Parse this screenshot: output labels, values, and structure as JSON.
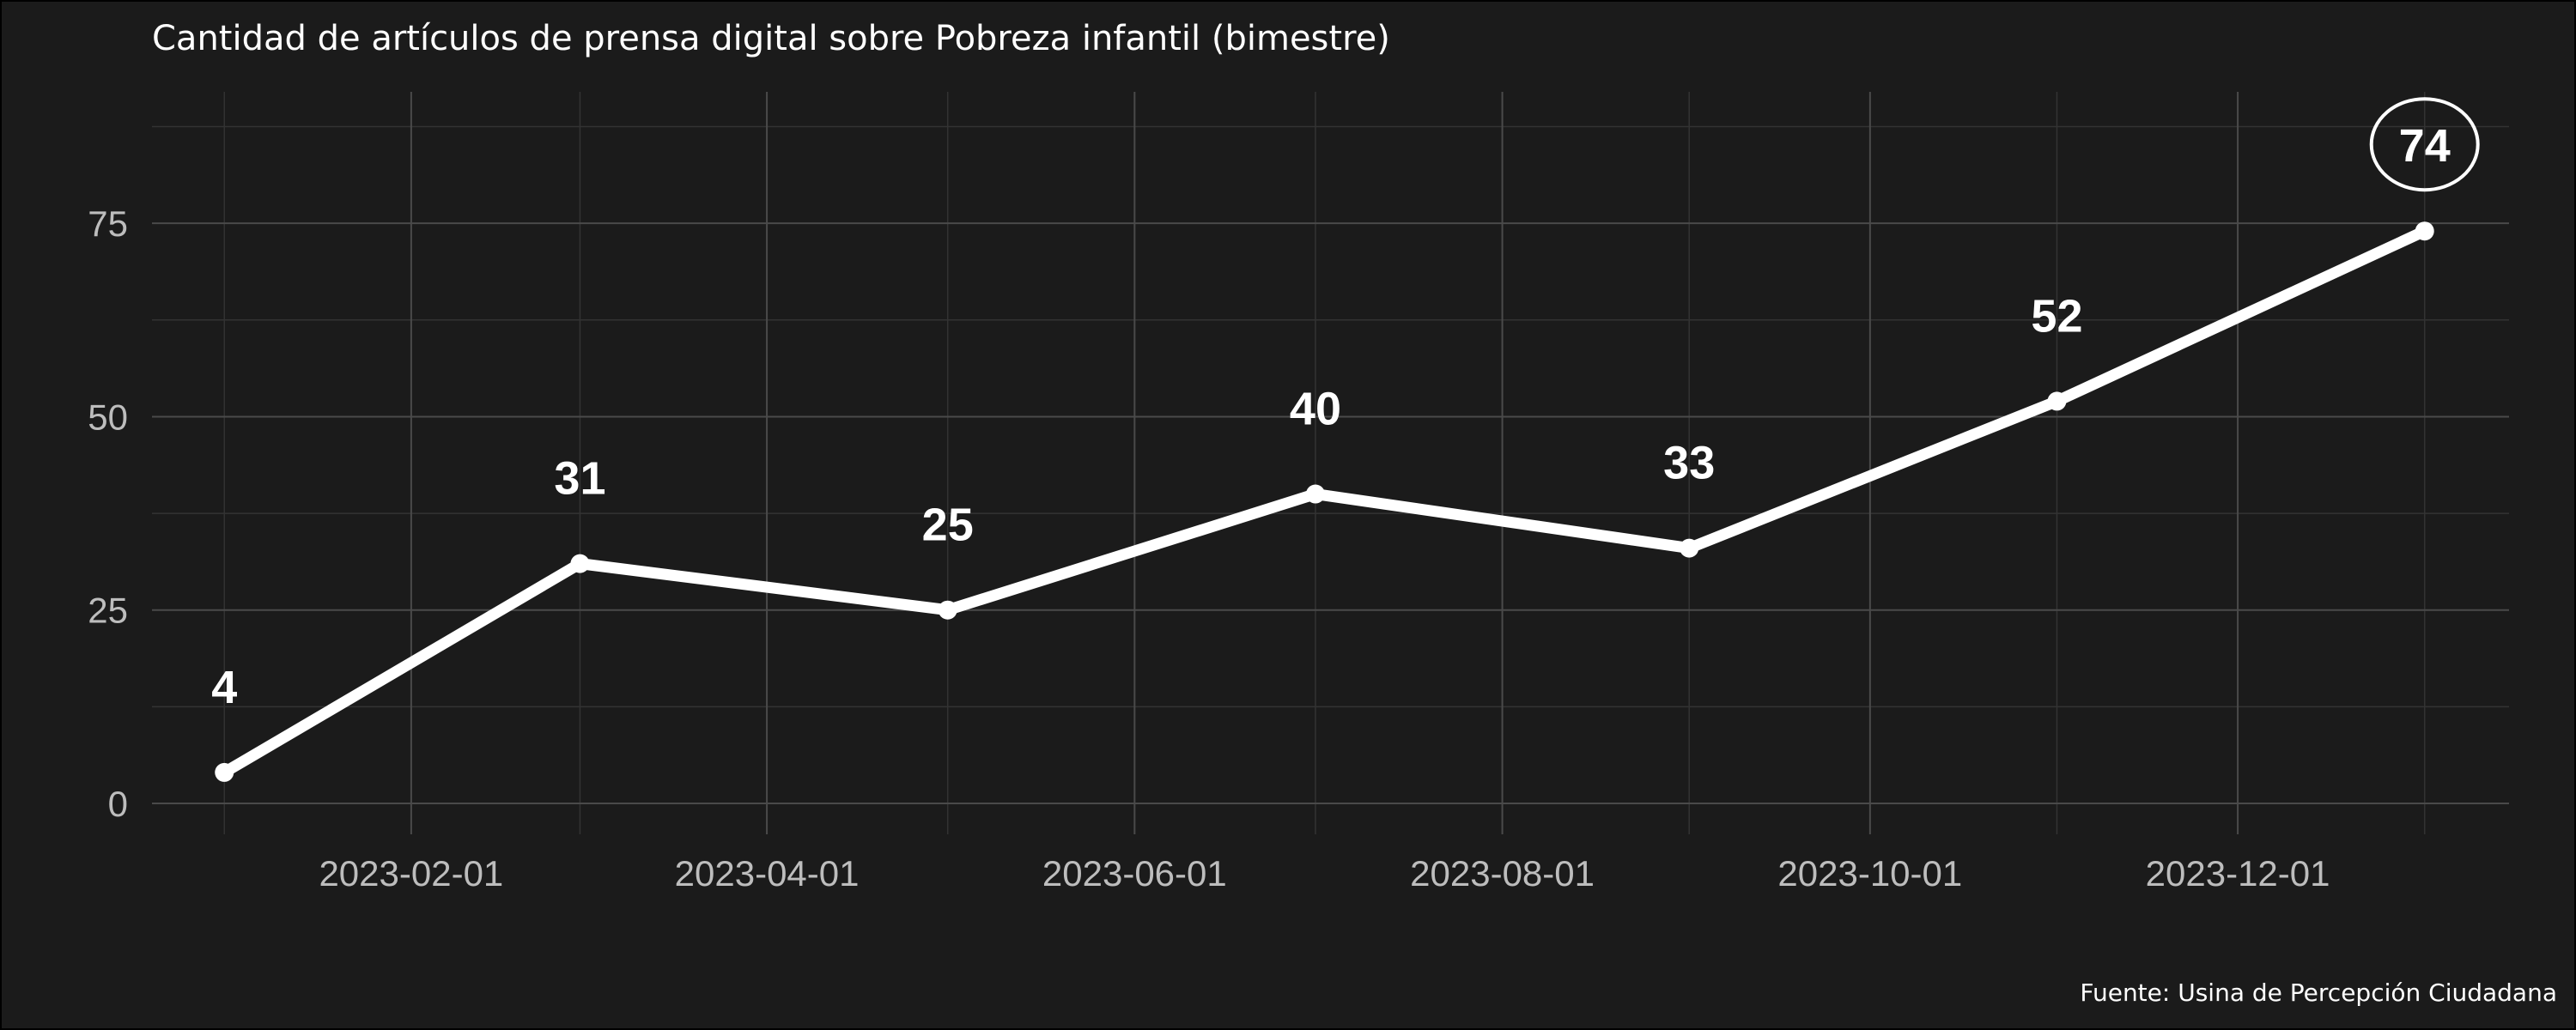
{
  "title": "Cantidad de artículos de prensa digital sobre Pobreza infantil (bimestre)",
  "caption": "Fuente: Usina de Percepción Ciudadana",
  "colors": {
    "background": "#1b1b1b",
    "major_grid": "#4a4a4a",
    "minor_grid": "#333333",
    "line": "#ffffff",
    "tick_text": "#bdbdbd",
    "text": "#ffffff"
  },
  "chart_data": {
    "type": "line",
    "x_type": "date",
    "x": [
      "2023-01-01",
      "2023-03-01",
      "2023-05-01",
      "2023-07-01",
      "2023-09-01",
      "2023-11-01",
      "2024-01-01"
    ],
    "series": [
      {
        "values": [
          4,
          31,
          25,
          40,
          33,
          52,
          74
        ],
        "data_labels": [
          "4",
          "31",
          "25",
          "40",
          "33",
          "52",
          "74"
        ],
        "highlighted_point": "74"
      }
    ],
    "x_ticks": [
      "2023-02-01",
      "2023-04-01",
      "2023-06-01",
      "2023-08-01",
      "2023-10-01",
      "2023-12-01"
    ],
    "y_ticks": [
      "0",
      "25",
      "50",
      "75"
    ],
    "xlim": [
      "2022-12-20",
      "2024-01-15"
    ],
    "ylim": [
      -4,
      92
    ],
    "xlabel": "",
    "ylabel": "",
    "grid": true,
    "legend": "none"
  }
}
